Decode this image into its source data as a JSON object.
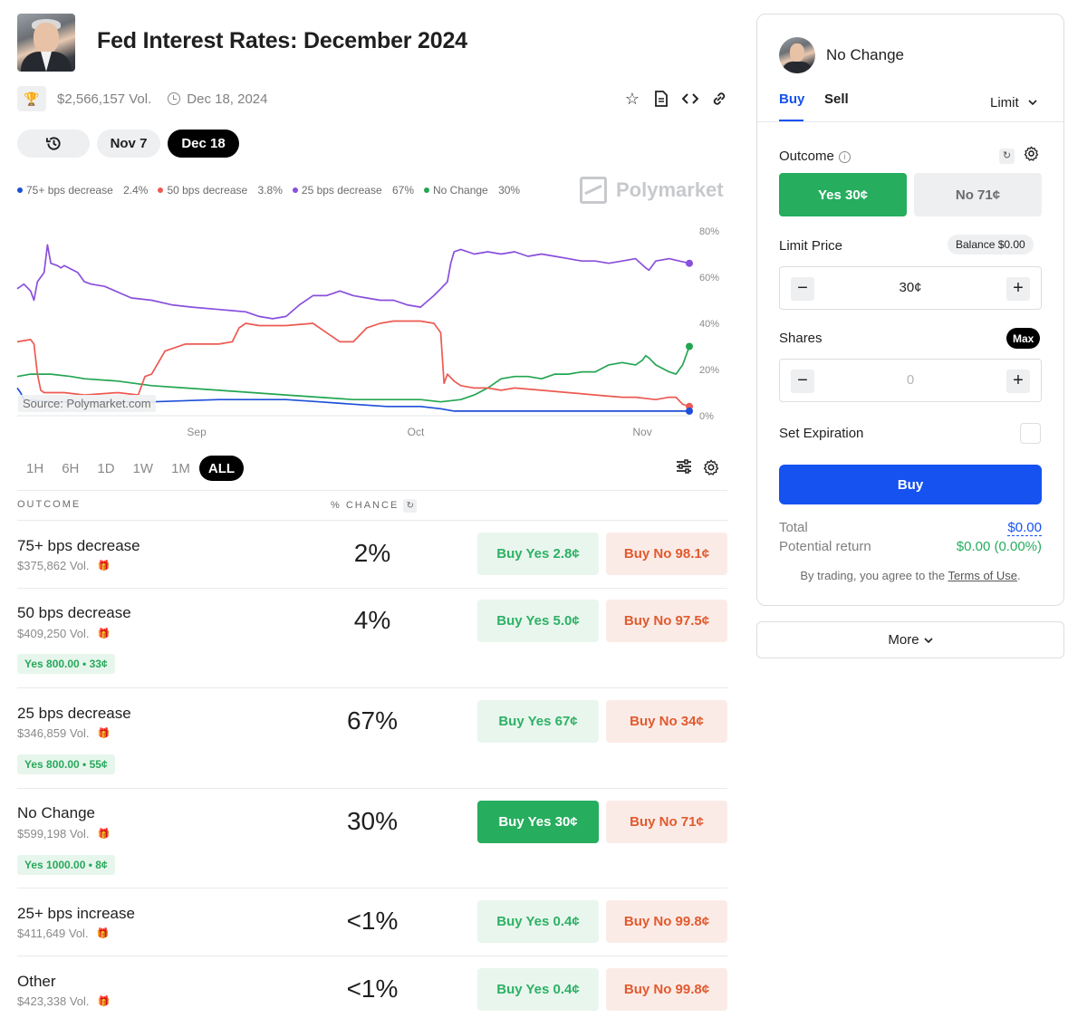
{
  "header": {
    "title": "Fed Interest Rates: December 2024",
    "volume": "$2,566,157 Vol.",
    "end_date": "Dec 18, 2024",
    "icons": [
      "star-icon",
      "document-icon",
      "code-icon",
      "link-icon"
    ]
  },
  "date_pills": {
    "history_icon": "history-icon",
    "items": [
      {
        "label": "Nov 7",
        "active": false
      },
      {
        "label": "Dec 18",
        "active": true
      }
    ]
  },
  "brand": "Polymarket",
  "chart_source": "Source: Polymarket.com",
  "chart_data": {
    "type": "line",
    "legend": [
      {
        "name": "75+ bps decrease",
        "value": "2.4%",
        "color": "#1e4fd8"
      },
      {
        "name": "50 bps decrease",
        "value": "3.8%",
        "color": "#ec5a52"
      },
      {
        "name": "25 bps decrease",
        "value": "67%",
        "color": "#8a4fdc"
      },
      {
        "name": "No Change",
        "value": "30%",
        "color": "#24a552"
      }
    ],
    "legend_position": "top-left",
    "x_ticks": [
      "Sep",
      "Oct",
      "Nov"
    ],
    "y_ticks": [
      "80%",
      "60%",
      "40%",
      "20%",
      "0%"
    ],
    "ylim": [
      0,
      80
    ],
    "grid": false,
    "series": [
      {
        "name": "25 bps decrease",
        "color": "#8a4fdc",
        "t": [
          0,
          0.01,
          0.02,
          0.025,
          0.03,
          0.04,
          0.045,
          0.05,
          0.06,
          0.065,
          0.07,
          0.09,
          0.1,
          0.11,
          0.13,
          0.17,
          0.2,
          0.23,
          0.26,
          0.3,
          0.34,
          0.36,
          0.38,
          0.4,
          0.42,
          0.44,
          0.46,
          0.48,
          0.5,
          0.52,
          0.54,
          0.56,
          0.58,
          0.6,
          0.62,
          0.63,
          0.64,
          0.645,
          0.65,
          0.66,
          0.68,
          0.7,
          0.72,
          0.74,
          0.76,
          0.78,
          0.8,
          0.82,
          0.84,
          0.86,
          0.88,
          0.9,
          0.92,
          0.935,
          0.94,
          0.95,
          0.97,
          0.985,
          1.0
        ],
        "v": [
          55,
          57,
          54,
          50,
          58,
          62,
          74,
          66,
          65,
          64,
          65,
          62,
          58,
          57,
          56,
          51,
          50,
          48,
          47,
          46,
          45,
          43,
          42,
          43,
          48,
          52,
          52,
          54,
          52,
          51,
          50,
          50,
          48,
          47,
          52,
          55,
          58,
          66,
          71,
          72,
          70,
          71,
          70,
          71,
          69,
          70,
          69,
          68,
          67,
          67,
          66,
          67,
          68,
          64,
          63,
          67,
          68,
          67,
          66
        ]
      },
      {
        "name": "No Change",
        "color": "#24a552",
        "t": [
          0,
          0.02,
          0.05,
          0.08,
          0.1,
          0.15,
          0.2,
          0.25,
          0.3,
          0.35,
          0.4,
          0.45,
          0.5,
          0.55,
          0.6,
          0.63,
          0.66,
          0.68,
          0.7,
          0.72,
          0.74,
          0.76,
          0.78,
          0.8,
          0.82,
          0.84,
          0.86,
          0.88,
          0.9,
          0.92,
          0.93,
          0.935,
          0.94,
          0.95,
          0.97,
          0.98,
          0.99,
          1.0
        ],
        "v": [
          17,
          18,
          18,
          17,
          16,
          15,
          13,
          12,
          11,
          10,
          9,
          8,
          7,
          7,
          7,
          6,
          7,
          9,
          12,
          16,
          17,
          17,
          16,
          18,
          18,
          19,
          19,
          22,
          23,
          22,
          24,
          26,
          25,
          22,
          19,
          18,
          22,
          30
        ]
      },
      {
        "name": "50 bps decrease",
        "color": "#ec5a52",
        "t": [
          0,
          0.02,
          0.025,
          0.03,
          0.035,
          0.04,
          0.07,
          0.1,
          0.15,
          0.18,
          0.19,
          0.2,
          0.22,
          0.25,
          0.3,
          0.32,
          0.33,
          0.34,
          0.36,
          0.4,
          0.44,
          0.46,
          0.48,
          0.5,
          0.52,
          0.54,
          0.56,
          0.58,
          0.6,
          0.62,
          0.63,
          0.635,
          0.64,
          0.65,
          0.66,
          0.68,
          0.7,
          0.72,
          0.74,
          0.78,
          0.82,
          0.86,
          0.9,
          0.92,
          0.95,
          0.97,
          0.98,
          0.99,
          1.0
        ],
        "v": [
          32,
          33,
          31,
          18,
          11,
          10,
          10,
          9,
          10,
          9,
          17,
          18,
          28,
          31,
          31,
          32,
          38,
          40,
          39,
          39,
          40,
          36,
          32,
          32,
          38,
          40,
          41,
          41,
          41,
          40,
          36,
          14,
          18,
          15,
          13,
          12,
          12,
          11,
          12,
          11,
          10,
          9,
          8,
          8,
          7,
          8,
          8,
          5,
          4
        ]
      },
      {
        "name": "75+ bps decrease",
        "color": "#1e4fd8",
        "t": [
          0,
          0.005,
          0.01,
          0.05,
          0.1,
          0.2,
          0.3,
          0.35,
          0.4,
          0.45,
          0.5,
          0.55,
          0.6,
          0.63,
          0.65,
          0.7,
          0.75,
          0.8,
          0.85,
          0.9,
          0.95,
          0.97,
          1.0
        ],
        "v": [
          12,
          10,
          7,
          6,
          6,
          6,
          7,
          7,
          7,
          6,
          5,
          4,
          4,
          3,
          2,
          2,
          2,
          2,
          2,
          2,
          2,
          2,
          2
        ]
      }
    ]
  },
  "ranges": [
    {
      "label": "1H",
      "active": false
    },
    {
      "label": "6H",
      "active": false
    },
    {
      "label": "1D",
      "active": false
    },
    {
      "label": "1W",
      "active": false
    },
    {
      "label": "1M",
      "active": false
    },
    {
      "label": "ALL",
      "active": true
    }
  ],
  "table": {
    "col_outcome": "OUTCOME",
    "col_chance": "% CHANCE",
    "rows": [
      {
        "name": "75+ bps decrease",
        "volume": "$375,862 Vol.",
        "chance": "2%",
        "yes": "Buy Yes 2.8¢",
        "no": "Buy No 98.1¢",
        "position": ""
      },
      {
        "name": "50 bps decrease",
        "volume": "$409,250 Vol.",
        "chance": "4%",
        "yes": "Buy Yes 5.0¢",
        "no": "Buy No 97.5¢",
        "position": "Yes 800.00 • 33¢"
      },
      {
        "name": "25 bps decrease",
        "volume": "$346,859 Vol.",
        "chance": "67%",
        "yes": "Buy Yes 67¢",
        "no": "Buy No 34¢",
        "position": "Yes 800.00 • 55¢"
      },
      {
        "name": "No Change",
        "volume": "$599,198 Vol.",
        "chance": "30%",
        "yes": "Buy Yes 30¢",
        "no": "Buy No 71¢",
        "position": "Yes 1000.00 • 8¢",
        "selected": true
      },
      {
        "name": "25+ bps increase",
        "volume": "$411,649 Vol.",
        "chance": "<1%",
        "yes": "Buy Yes 0.4¢",
        "no": "Buy No 99.8¢",
        "position": ""
      },
      {
        "name": "Other",
        "volume": "$423,338 Vol.",
        "chance": "<1%",
        "yes": "Buy Yes 0.4¢",
        "no": "Buy No 99.8¢",
        "position": ""
      }
    ]
  },
  "panel": {
    "title": "No Change",
    "tab_buy": "Buy",
    "tab_sell": "Sell",
    "order_type": "Limit",
    "outcome_label": "Outcome",
    "yes_label": "Yes 30¢",
    "no_label": "No 71¢",
    "limit_label": "Limit Price",
    "balance": "Balance $0.00",
    "limit_value": "30¢",
    "shares_label": "Shares",
    "max_label": "Max",
    "shares_value": "0",
    "expiration_label": "Set Expiration",
    "buy_button": "Buy",
    "total_label": "Total",
    "total_value": "$0.00",
    "return_label": "Potential return",
    "return_value": "$0.00 (0.00%)",
    "terms_prefix": "By trading, you agree to the",
    "terms_link": "Terms of Use",
    "terms_suffix": "."
  },
  "more_button": "More"
}
